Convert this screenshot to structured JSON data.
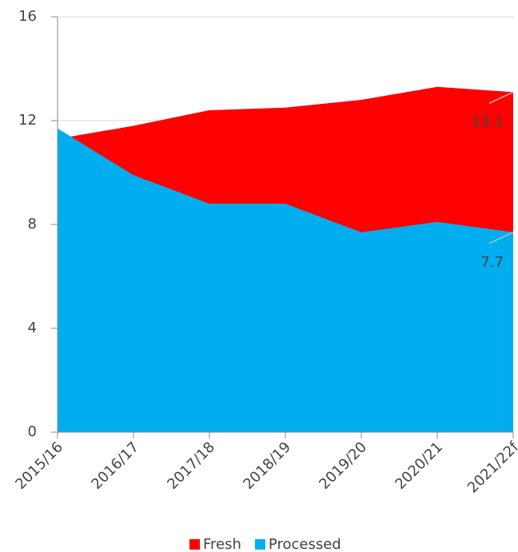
{
  "chart_data": {
    "type": "area",
    "categories": [
      "2015/16",
      "2016/17",
      "2017/18",
      "2018/19",
      "2019/20",
      "2020/21",
      "2021/22f"
    ],
    "series": [
      {
        "name": "Fresh",
        "color": "#ff0000",
        "values": [
          11.3,
          11.8,
          12.4,
          12.5,
          12.8,
          13.3,
          13.1
        ]
      },
      {
        "name": "Processed",
        "color": "#00aeef",
        "values": [
          11.7,
          9.9,
          8.8,
          8.8,
          7.7,
          8.1,
          7.7
        ]
      }
    ],
    "ylim": [
      0,
      16
    ],
    "yticks": [
      0,
      4,
      8,
      12,
      16
    ],
    "grid": true,
    "legend": "bottom"
  }
}
